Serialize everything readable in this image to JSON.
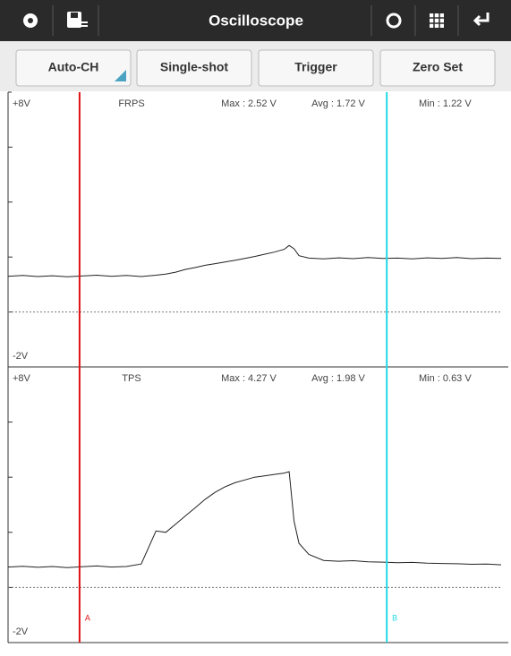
{
  "toolbar": {
    "title": "Oscilloscope"
  },
  "buttons": [
    "Auto-CH",
    "Single-shot",
    "Trigger",
    "Zero Set"
  ],
  "cursors": [
    {
      "label": "A",
      "color": "#e01010",
      "x": 14.5
    },
    {
      "label": "B",
      "color": "#22d8e8",
      "x": 76.8
    }
  ],
  "chart_data": [
    {
      "type": "line",
      "title": "FRPS",
      "color": "#222222",
      "annotations": [
        "Max : 2.52 V",
        "Avg : 1.72 V",
        "Min : 1.22 V"
      ],
      "x": [
        0,
        3,
        6,
        9,
        12,
        15,
        18,
        21,
        24,
        27,
        30,
        32,
        34,
        36,
        38,
        40,
        42,
        44,
        46,
        48,
        50,
        52,
        54,
        56,
        57,
        58,
        59,
        61,
        64,
        67,
        70,
        73,
        76,
        79,
        82,
        85,
        88,
        91,
        94,
        97,
        100
      ],
      "values": [
        1.3,
        1.33,
        1.29,
        1.32,
        1.28,
        1.31,
        1.34,
        1.3,
        1.33,
        1.29,
        1.34,
        1.38,
        1.45,
        1.55,
        1.62,
        1.7,
        1.76,
        1.82,
        1.88,
        1.95,
        2.02,
        2.1,
        2.18,
        2.28,
        2.42,
        2.3,
        2.05,
        1.96,
        1.93,
        1.97,
        1.94,
        1.98,
        1.95,
        1.96,
        1.93,
        1.97,
        1.95,
        1.98,
        1.94,
        1.96,
        1.95
      ],
      "xlim": [
        0,
        100
      ],
      "ylim": [
        -2,
        8
      ],
      "yticks": [
        {
          "value": 8,
          "label": "+8V"
        },
        {
          "value": -2,
          "label": "-2V"
        }
      ],
      "minor_yticks": [
        6,
        4,
        2,
        0
      ],
      "zero_line": 0
    },
    {
      "type": "line",
      "title": "TPS",
      "color": "#222222",
      "annotations": [
        "Max : 4.27 V",
        "Avg : 1.98 V",
        "Min : 0.63 V"
      ],
      "x": [
        0,
        3,
        6,
        9,
        12,
        15,
        18,
        21,
        24,
        27,
        30,
        32,
        34,
        36,
        38,
        40,
        42,
        44,
        46,
        48,
        50,
        52,
        54,
        56,
        57,
        58,
        59,
        61,
        64,
        67,
        70,
        73,
        76,
        79,
        82,
        85,
        88,
        91,
        94,
        97,
        100
      ],
      "values": [
        0.74,
        0.77,
        0.73,
        0.76,
        0.72,
        0.75,
        0.78,
        0.74,
        0.76,
        0.85,
        2.05,
        2.0,
        2.3,
        2.6,
        2.9,
        3.2,
        3.45,
        3.65,
        3.8,
        3.9,
        4.0,
        4.05,
        4.1,
        4.15,
        4.2,
        2.4,
        1.6,
        1.2,
        0.98,
        0.95,
        0.97,
        0.93,
        0.92,
        0.9,
        0.91,
        0.88,
        0.87,
        0.86,
        0.84,
        0.85,
        0.82
      ],
      "xlim": [
        0,
        100
      ],
      "ylim": [
        -2,
        8
      ],
      "yticks": [
        {
          "value": 8,
          "label": "+8V"
        },
        {
          "value": -2,
          "label": "-2V"
        }
      ],
      "minor_yticks": [
        6,
        4,
        2,
        0
      ],
      "zero_line": 0
    }
  ]
}
